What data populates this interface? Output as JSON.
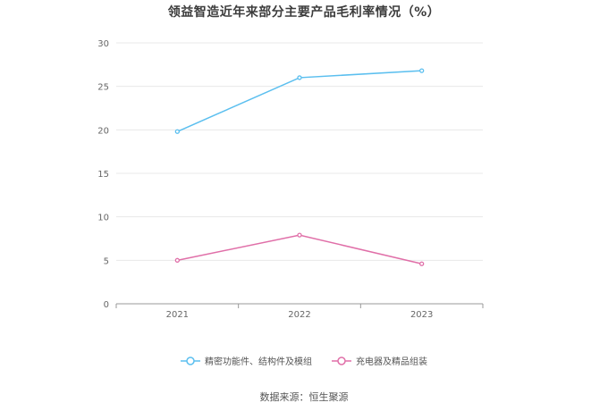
{
  "title": "领益智造近年来部分主要产品毛利率情况（%）",
  "source": "数据来源：恒生聚源",
  "chart_data": {
    "type": "line",
    "title": "领益智造近年来部分主要产品毛利率情况（%）",
    "xlabel": "",
    "ylabel": "",
    "categories": [
      "2021",
      "2022",
      "2023"
    ],
    "ylim": [
      0,
      30
    ],
    "yticks": [
      0,
      5,
      10,
      15,
      20,
      25,
      30
    ],
    "grid": true,
    "legend_position": "bottom",
    "series": [
      {
        "name": "精密功能件、结构件及模组",
        "color": "#5bbfef",
        "values": [
          19.8,
          26.0,
          26.8
        ]
      },
      {
        "name": "充电器及精品组装",
        "color": "#e06fa8",
        "values": [
          5.0,
          7.9,
          4.6
        ]
      }
    ]
  }
}
